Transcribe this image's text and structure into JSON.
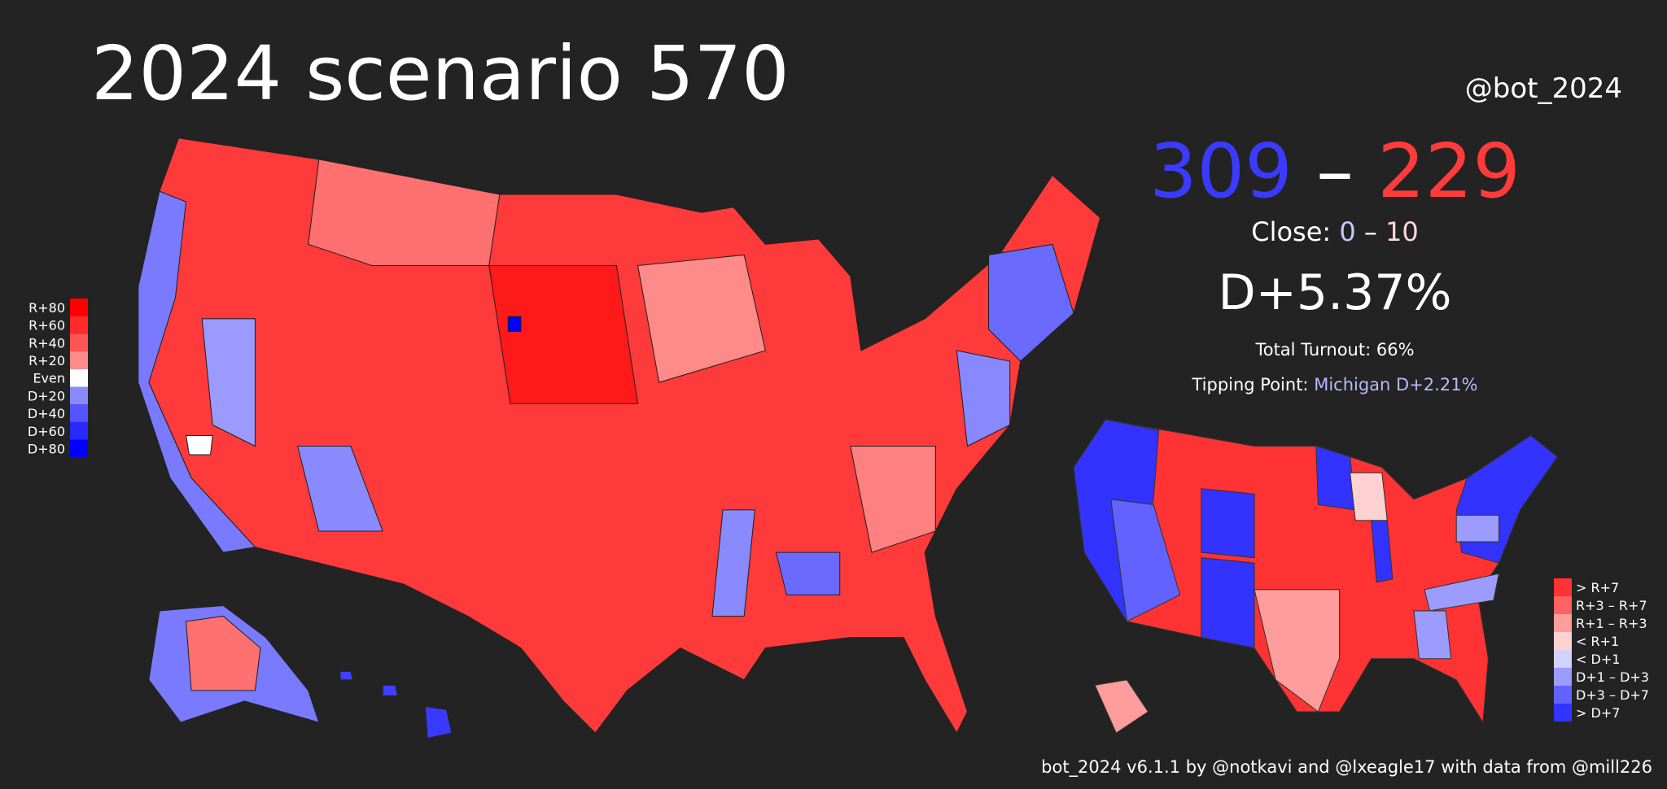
{
  "header": {
    "title": "2024 scenario 570",
    "handle": "@bot_2024"
  },
  "score": {
    "dem": 309,
    "separator": "–",
    "rep": 229,
    "dem_color": "#3b3bff",
    "rep_color": "#ff3b3b"
  },
  "close": {
    "label": "Close:",
    "dem": 0,
    "separator": "–",
    "rep": 10
  },
  "margin": "D+5.37%",
  "turnout": "Total Turnout: 66%",
  "tipping_point": {
    "label": "Tipping Point:",
    "value": "Michigan D+2.21%"
  },
  "county_legend": [
    {
      "label": "R+80",
      "color": "#ff0000"
    },
    {
      "label": "R+60",
      "color": "#ff2a2a"
    },
    {
      "label": "R+40",
      "color": "#ff5555"
    },
    {
      "label": "R+20",
      "color": "#ff8a8a"
    },
    {
      "label": "Even",
      "color": "#ffffff"
    },
    {
      "label": "D+20",
      "color": "#8a8aff"
    },
    {
      "label": "D+40",
      "color": "#5555ff"
    },
    {
      "label": "D+60",
      "color": "#2a2aff"
    },
    {
      "label": "D+80",
      "color": "#0000ff"
    }
  ],
  "state_legend": [
    {
      "label": "> R+7",
      "color": "#ff3333"
    },
    {
      "label": "R+3 – R+7",
      "color": "#ff6262"
    },
    {
      "label": "R+1 – R+3",
      "color": "#ff9c9c"
    },
    {
      "label": "< R+1",
      "color": "#ffd2d2"
    },
    {
      "label": "< D+1",
      "color": "#d2d2ff"
    },
    {
      "label": "D+1 – D+3",
      "color": "#9c9cff"
    },
    {
      "label": "D+3 – D+7",
      "color": "#6262ff"
    },
    {
      "label": "> D+7",
      "color": "#3333ff"
    }
  ],
  "footer": "bot_2024 v6.1.1 by @notkavi and @lxeagle17 with data from @mill226"
}
